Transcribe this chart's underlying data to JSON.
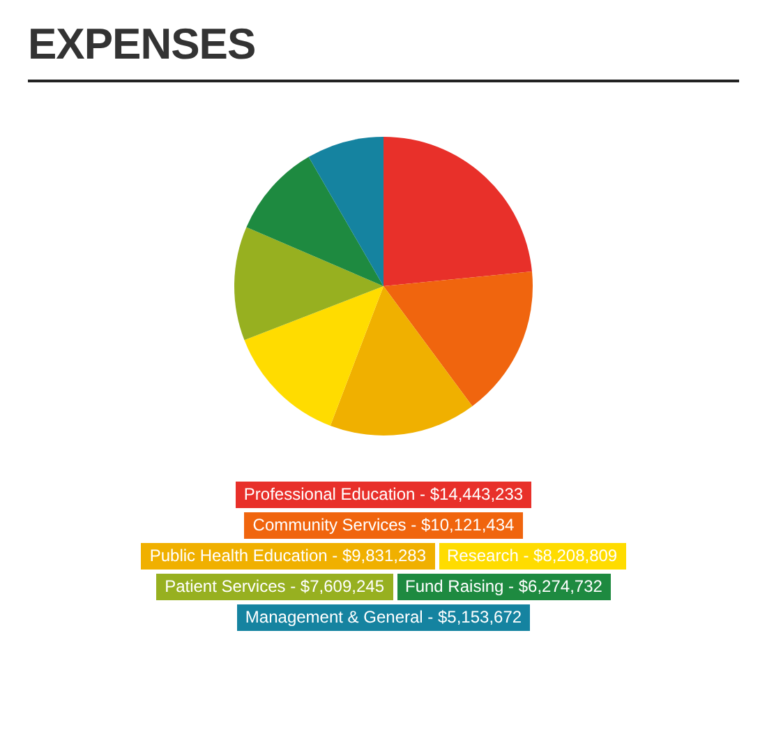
{
  "chart_data": {
    "type": "pie",
    "title": "EXPENSES",
    "categories": [
      "Professional Education",
      "Community Services",
      "Public Health Education",
      "Research",
      "Patient Services",
      "Fund Raising",
      "Management & General"
    ],
    "values": [
      14443233,
      10121434,
      9831283,
      8208809,
      7609245,
      6274732,
      5153672
    ],
    "value_labels": [
      "$14,443,233",
      "$10,121,434",
      "$9,831,283",
      "$8,208,809",
      "$7,609,245",
      "$6,274,732",
      "$5,153,672"
    ],
    "colors": [
      "#e8302a",
      "#f0650e",
      "#f0b000",
      "#ffdc00",
      "#97b020",
      "#1e8a40",
      "#1583a0"
    ],
    "legend": "bottom"
  }
}
